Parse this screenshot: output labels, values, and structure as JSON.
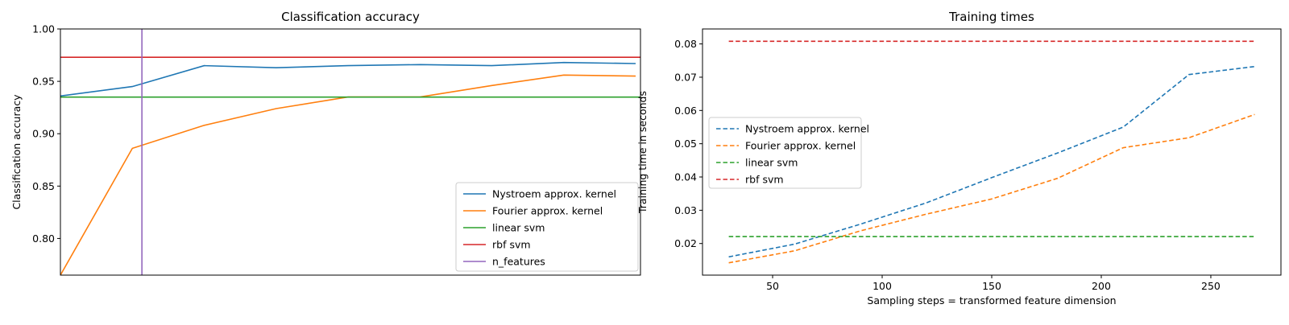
{
  "chart_data": [
    {
      "type": "line",
      "title": "Classification accuracy",
      "xlabel": "",
      "ylabel": "Classification accuracy",
      "x": [
        30,
        60,
        90,
        120,
        150,
        180,
        210,
        240,
        270
      ],
      "xlim": [
        30,
        272
      ],
      "ylim": [
        0.765,
        1.0
      ],
      "yticks": [
        0.8,
        0.85,
        0.9,
        0.95,
        1.0
      ],
      "ytick_labels": [
        "0.80",
        "0.85",
        "0.90",
        "0.95",
        "1.00"
      ],
      "xticks_visible": false,
      "grid": false,
      "legend_position": "bottom-right",
      "series": [
        {
          "name": "Nystroem approx. kernel",
          "color": "#1f77b4",
          "dashed": false,
          "values": [
            0.936,
            0.945,
            0.965,
            0.963,
            0.965,
            0.966,
            0.965,
            0.968,
            0.967
          ]
        },
        {
          "name": "Fourier approx. kernel",
          "color": "#ff7f0e",
          "dashed": false,
          "values": [
            0.765,
            0.886,
            0.908,
            0.924,
            0.935,
            0.935,
            0.946,
            0.956,
            0.955
          ]
        },
        {
          "name": "linear svm",
          "color": "#2ca02c",
          "dashed": false,
          "hline": 0.935
        },
        {
          "name": "rbf svm",
          "color": "#d62728",
          "dashed": false,
          "hline": 0.973
        },
        {
          "name": "n_features",
          "color": "#9467bd",
          "dashed": false,
          "vline": 64
        }
      ]
    },
    {
      "type": "line",
      "title": "Training times",
      "xlabel": "Sampling steps = transformed feature dimension",
      "ylabel": "Training time in seconds",
      "x": [
        30,
        60,
        90,
        120,
        150,
        180,
        210,
        240,
        270
      ],
      "xlim": [
        18,
        282
      ],
      "ylim": [
        0.0105,
        0.0845
      ],
      "xticks": [
        50,
        100,
        150,
        200,
        250
      ],
      "xtick_labels": [
        "50",
        "100",
        "150",
        "200",
        "250"
      ],
      "yticks": [
        0.02,
        0.03,
        0.04,
        0.05,
        0.06,
        0.07,
        0.08
      ],
      "ytick_labels": [
        "0.02",
        "0.03",
        "0.04",
        "0.05",
        "0.06",
        "0.07",
        "0.08"
      ],
      "grid": false,
      "legend_position": "center-left",
      "series": [
        {
          "name": "Nystroem approx. kernel",
          "color": "#1f77b4",
          "dashed": true,
          "values": [
            0.016,
            0.0198,
            0.0258,
            0.0322,
            0.0398,
            0.0472,
            0.055,
            0.0708,
            0.0732
          ]
        },
        {
          "name": "Fourier approx. kernel",
          "color": "#ff7f0e",
          "dashed": true,
          "values": [
            0.0142,
            0.0178,
            0.0238,
            0.0288,
            0.0334,
            0.0396,
            0.0488,
            0.0518,
            0.0588
          ]
        },
        {
          "name": "linear svm",
          "color": "#2ca02c",
          "dashed": true,
          "hline": 0.0221,
          "xrange": [
            30,
            270
          ]
        },
        {
          "name": "rbf svm",
          "color": "#d62728",
          "dashed": true,
          "hline": 0.0808,
          "xrange": [
            30,
            270
          ]
        }
      ]
    }
  ]
}
